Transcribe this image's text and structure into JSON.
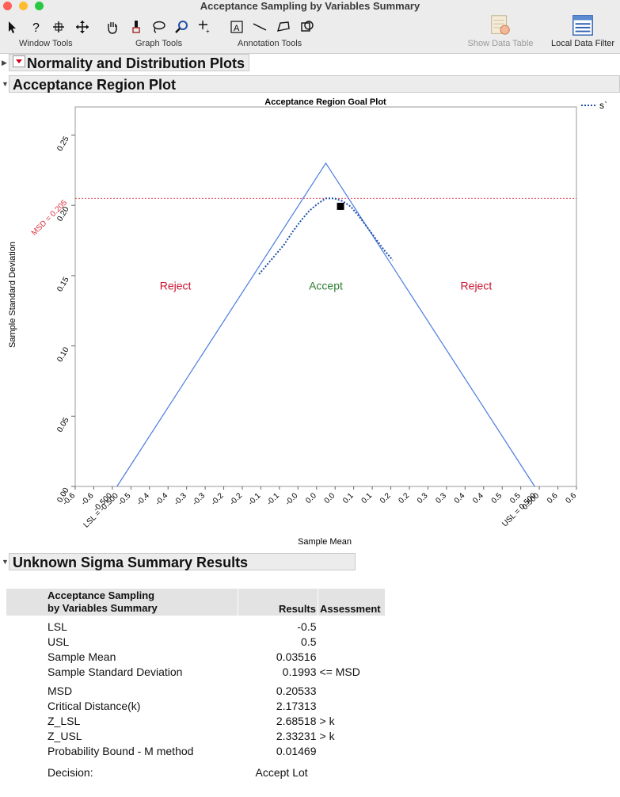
{
  "window": {
    "title": "Acceptance Sampling by Variables Summary"
  },
  "toolbar": {
    "groups": [
      {
        "label": "Window Tools"
      },
      {
        "label": "Graph Tools"
      },
      {
        "label": "Annotation Tools"
      }
    ],
    "show_data_table": "Show Data Table",
    "local_data_filter": "Local Data Filter"
  },
  "sections": {
    "normality": "Normality and Distribution Plots",
    "acceptance": "Acceptance Region Plot",
    "summary": "Unknown Sigma Summary Results"
  },
  "chart_data": {
    "type": "line",
    "title": "Acceptance Region Goal Plot",
    "xlabel": "Sample Mean",
    "ylabel": "Sample Standard Deviation",
    "xlim": [
      -0.6,
      0.6
    ],
    "ylim": [
      0,
      0.27
    ],
    "x_ticks": [
      "-0.6",
      "-0.6",
      "-0.500",
      "-0.5",
      "-0.4",
      "-0.4",
      "-0.3",
      "-0.3",
      "-0.2",
      "-0.2",
      "-0.1",
      "-0.1",
      "-0.0",
      "0.0",
      "0.0",
      "0.1",
      "0.1",
      "0.2",
      "0.2",
      "0.3",
      "0.3",
      "0.4",
      "0.4",
      "0.5",
      "0.5",
      "0.500",
      "0.6",
      "0.6"
    ],
    "y_ticks": [
      "0.00",
      "0.05",
      "0.10",
      "0.15",
      "0.20",
      "0.25"
    ],
    "lsl_label": "LSL = -0.500",
    "usl_label": "USL = 0.500",
    "msd_label": "MSD = 0.205",
    "msd": 0.205,
    "triangle": [
      [
        -0.5,
        0
      ],
      [
        0,
        0.23
      ],
      [
        0.5,
        0
      ]
    ],
    "s_curve": [
      [
        -0.16,
        0.151
      ],
      [
        -0.14,
        0.158
      ],
      [
        -0.12,
        0.165
      ],
      [
        -0.1,
        0.172
      ],
      [
        -0.08,
        0.181
      ],
      [
        -0.06,
        0.189
      ],
      [
        -0.04,
        0.196
      ],
      [
        -0.02,
        0.201
      ],
      [
        0.0,
        0.205
      ],
      [
        0.02,
        0.205
      ],
      [
        0.04,
        0.203
      ],
      [
        0.06,
        0.199
      ],
      [
        0.08,
        0.192
      ],
      [
        0.1,
        0.184
      ],
      [
        0.12,
        0.176
      ],
      [
        0.14,
        0.168
      ],
      [
        0.16,
        0.161
      ]
    ],
    "point": [
      0.03516,
      0.1993
    ],
    "regions": [
      {
        "label": "Reject",
        "x": -0.36,
        "y": 0.14,
        "color": "#c8102e"
      },
      {
        "label": "Accept",
        "x": 0.0,
        "y": 0.14,
        "color": "#2e7d32"
      },
      {
        "label": "Reject",
        "x": 0.36,
        "y": 0.14,
        "color": "#c8102e"
      }
    ],
    "legend": [
      {
        "name": "s`",
        "color": "#1f4fa8"
      }
    ],
    "colors": {
      "triangle": "#4a7be0",
      "msd": "#d9303e",
      "curve": "#1f4fa8"
    }
  },
  "results": {
    "header_line1": "Acceptance Sampling",
    "header_line2": "by Variables Summary",
    "col_results": "Results",
    "col_assessment": "Assessment",
    "rows": [
      {
        "label": "LSL",
        "value": "-0.5",
        "assessment": ""
      },
      {
        "label": "USL",
        "value": "0.5",
        "assessment": ""
      },
      {
        "label": "Sample Mean",
        "value": "0.03516",
        "assessment": ""
      },
      {
        "label": "Sample Standard Deviation",
        "value": "0.1993",
        "assessment": "<= MSD"
      },
      {
        "label": "MSD",
        "value": "0.20533",
        "assessment": ""
      },
      {
        "label": "Critical Distance(k)",
        "value": "2.17313",
        "assessment": ""
      },
      {
        "label": "Z_LSL",
        "value": "2.68518",
        "assessment": "> k"
      },
      {
        "label": "Z_USL",
        "value": "2.33231",
        "assessment": "> k"
      },
      {
        "label": "Probability Bound - M method",
        "value": "0.01469",
        "assessment": ""
      }
    ],
    "decision_label": "Decision:",
    "decision_value": "Accept Lot"
  }
}
